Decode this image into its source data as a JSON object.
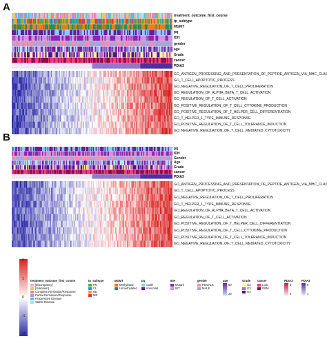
{
  "panels": [
    {
      "letter": "A",
      "annotation_tracks": [
        "treatment_outcome_first_course",
        "tp_subtype",
        "MGMT",
        "pq",
        "IDH",
        "gender",
        "age",
        "Grade",
        "cancer",
        "PDIA3"
      ],
      "genesets": [
        "GO_ANTIGEN_PROCESSING_AND_PRESENTATION_OF_PEPTIDE_ANTIGEN_VIA_MHC_CLASS_I",
        "GO_T_CELL_APOPTOTIC_PROCESS",
        "GO_NEGATIVE_REGULATION_OF_T_CELL_PROLIFERATION",
        "GO_REGULATION_OF_ALPHA_BETA_T_CELL_ACTIVATION",
        "GO_REGULATION_OF_T_CELL_ACTIVATION",
        "GO_POSITIVE_REGULATION_OF_T_CELL_CYTOKINE_PRODUCTION",
        "GO_POSITIVE_REGULATION_OF_T_HELPER_CELL_DIFFERENTIATION",
        "GO_T_HELPER_1_TYPE_IMMUNE_RESPONSE",
        "GO_POSITIVE_REGULATION_OF_T_CELL_TOLERANCE_INDUCTION",
        "GO_NEGATIVE_REGULATION_OF_T_CELL_MEDIATED_CYTOTOXICITY"
      ]
    },
    {
      "letter": "B",
      "annotation_tracks": [
        "pq",
        "IDH",
        "Gender",
        "Age",
        "Grade",
        "cancer",
        "PDIA3"
      ],
      "genesets": [
        "GO_ANTIGEN_PROCESSING_AND_PRESENTATION_OF_PEPTIDE_ANTIGEN_VIA_MHC_CLASS_I",
        "GO_T_CELL_APOPTOTIC_PROCESS",
        "GO_NEGATIVE_REGULATION_OF_T_CELL_PROLIFERATION",
        "GO_T_HELPER_1_TYPE_IMMUNE_RESPONSE",
        "GO_REGULATION_OF_ALPHA_BETA_T_CELL_ACTIVATION",
        "GO_REGULATION_OF_T_CELL_ACTIVATION",
        "GO_POSITIVE_REGULATION_OF_T_HELPER_CELL_DIFFERENTIATION",
        "GO_POSITIVE_REGULATION_OF_T_CELL_CYTOKINE_PRODUCTION",
        "GO_POSITIVE_REGULATION_OF_T_CELL_TOLERANCE_INDUCTION",
        "GO_NEGATIVE_REGULATION_OF_T_CELL_MEDIATED_CYTOTOXICITY"
      ]
    }
  ],
  "colorbar": {
    "ticks": [
      "2",
      "1",
      "0",
      "-1",
      "-2"
    ],
    "low": "#2c2ca8",
    "mid": "#ffffff",
    "high": "#d92020"
  },
  "legends": [
    {
      "title": "treatment_outcome_first_course",
      "items": [
        {
          "label": "[Discrepancy]",
          "color": "#f5a9c8"
        },
        {
          "label": "[Unknown]",
          "color": "#e0d05a"
        },
        {
          "label": "Complete Remission/Response",
          "color": "#f08080"
        },
        {
          "label": "Partial Remission/Response",
          "color": "#c58be0"
        },
        {
          "label": "Progressive Disease",
          "color": "#4fc3e0"
        },
        {
          "label": "Stable Disease",
          "color": "#b0e0f0"
        }
      ]
    },
    {
      "title": "tp_subtype",
      "items": [
        {
          "label": "PN",
          "color": "#4caf50"
        },
        {
          "label": "CL",
          "color": "#2196f3"
        },
        {
          "label": "NE",
          "color": "#f0a030"
        },
        {
          "label": "ME",
          "color": "#e53935"
        }
      ]
    },
    {
      "title": "MGMT",
      "items": [
        {
          "label": "Methylated",
          "color": "#e67e22"
        },
        {
          "label": "Unmethylated",
          "color": "#2e8b57"
        }
      ]
    },
    {
      "title": "pq",
      "items": [
        {
          "label": "codel",
          "color": "#90caf9"
        },
        {
          "label": "noncodel",
          "color": "#6a1b9a"
        }
      ]
    },
    {
      "title": "IDH",
      "items": [
        {
          "label": "Mutant",
          "color": "#8e24aa"
        },
        {
          "label": "WT",
          "color": "#ce93d8"
        }
      ]
    },
    {
      "title": "gender",
      "items": [
        {
          "label": "FEMALE",
          "color": "#f48fb1"
        },
        {
          "label": "MALE",
          "color": "#9fa8da"
        }
      ]
    },
    {
      "title": "age",
      "gradient": [
        "#b3e5fc",
        "#7b1fa2"
      ],
      "ticks": [
        "80",
        "20"
      ]
    },
    {
      "title": "Grade",
      "items": [
        {
          "label": "G2",
          "color": "#fff59d"
        },
        {
          "label": "G3",
          "color": "#ba68c8"
        },
        {
          "label": "G4",
          "color": "#4a148c"
        }
      ]
    },
    {
      "title": "cancer",
      "items": [
        {
          "label": "LGG",
          "color": "#ec407a"
        },
        {
          "label": "GBM",
          "color": "#880e4f"
        }
      ]
    },
    {
      "title": "PDIA3",
      "gradient": [
        "#fce4ec",
        "#c2185b"
      ],
      "ticks": [
        "8",
        "6"
      ]
    },
    {
      "title": "PDIA3",
      "gradient": [
        "#ede7f6",
        "#512da8"
      ],
      "ticks": [
        "6",
        "4"
      ]
    }
  ]
}
